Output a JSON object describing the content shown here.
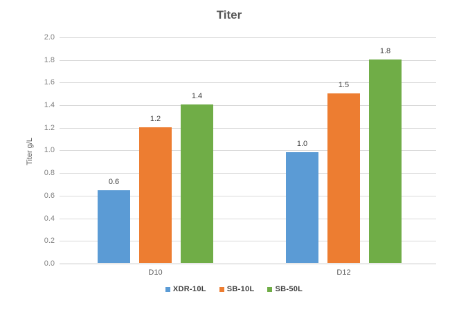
{
  "chart_data": {
    "type": "bar",
    "title": "Titer",
    "xlabel": "",
    "ylabel": "Titer g/L",
    "categories": [
      "D10",
      "D12"
    ],
    "series": [
      {
        "name": "XDR-10L",
        "color": "#5B9BD5",
        "values": [
          0.64,
          0.98
        ],
        "labels": [
          "0.6",
          "1.0"
        ]
      },
      {
        "name": "SB-10L",
        "color": "#ED7D31",
        "values": [
          1.2,
          1.5
        ],
        "labels": [
          "1.2",
          "1.5"
        ]
      },
      {
        "name": "SB-50L",
        "color": "#70AD47",
        "values": [
          1.4,
          1.8
        ],
        "labels": [
          "1.4",
          "1.8"
        ]
      }
    ],
    "ylim": [
      0,
      2.0
    ],
    "yticks": [
      "0.0",
      "0.2",
      "0.4",
      "0.6",
      "0.8",
      "1.0",
      "1.2",
      "1.4",
      "1.6",
      "1.8",
      "2.0"
    ],
    "grid": true,
    "legend_position": "bottom"
  },
  "colors": {
    "background": "#FFFFFF",
    "gridline": "#D9D9D9",
    "axis_line": "#C6C6C6",
    "title_text": "#595959",
    "y_axis_title_text": "#595959",
    "y_tick_text": "#808080",
    "category_text": "#595959",
    "data_label_text": "#404040",
    "legend_text": "#404040"
  }
}
